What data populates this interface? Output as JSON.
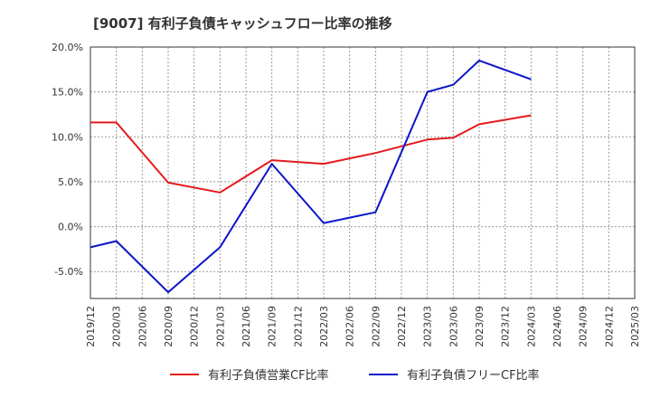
{
  "chart_data": {
    "type": "line",
    "title": "[9007]  有利子負債キャッシュフロー比率の推移",
    "x": [
      "2019/12",
      "2020/03",
      "2020/06",
      "2020/09",
      "2020/12",
      "2021/03",
      "2021/06",
      "2021/09",
      "2021/12",
      "2022/03",
      "2022/06",
      "2022/09",
      "2022/12",
      "2023/03",
      "2023/06",
      "2023/09",
      "2023/12",
      "2024/03",
      "2024/06",
      "2024/09",
      "2024/12",
      "2025/03"
    ],
    "ylim": [
      -8,
      20
    ],
    "yticks": [
      20,
      15,
      10,
      5,
      0,
      -5
    ],
    "ytick_labels": [
      "20.0%",
      "15.0%",
      "10.0%",
      "5.0%",
      "0.0%",
      "-5.0%"
    ],
    "grid": true,
    "legend_position": "bottom",
    "series": [
      {
        "name": "有利子負債営業CF比率",
        "color": "#e31a1c",
        "points": [
          {
            "x": "2019/12",
            "y": 11.6
          },
          {
            "x": "2020/03",
            "y": 11.6
          },
          {
            "x": "2020/09",
            "y": 4.9
          },
          {
            "x": "2021/03",
            "y": 3.8
          },
          {
            "x": "2021/09",
            "y": 7.4
          },
          {
            "x": "2022/03",
            "y": 7.0
          },
          {
            "x": "2022/09",
            "y": 8.2
          },
          {
            "x": "2023/03",
            "y": 9.7
          },
          {
            "x": "2023/06",
            "y": 9.9
          },
          {
            "x": "2023/09",
            "y": 11.4
          },
          {
            "x": "2024/03",
            "y": 12.4
          }
        ]
      },
      {
        "name": "有利子負債フリーCF比率",
        "color": "#0b16c8",
        "points": [
          {
            "x": "2019/12",
            "y": -2.3
          },
          {
            "x": "2020/03",
            "y": -1.6
          },
          {
            "x": "2020/09",
            "y": -7.3
          },
          {
            "x": "2021/03",
            "y": -2.3
          },
          {
            "x": "2021/09",
            "y": 7.0
          },
          {
            "x": "2022/03",
            "y": 0.4
          },
          {
            "x": "2022/09",
            "y": 1.6
          },
          {
            "x": "2023/03",
            "y": 15.0
          },
          {
            "x": "2023/06",
            "y": 15.8
          },
          {
            "x": "2023/09",
            "y": 18.5
          },
          {
            "x": "2024/03",
            "y": 16.4
          }
        ]
      }
    ]
  }
}
